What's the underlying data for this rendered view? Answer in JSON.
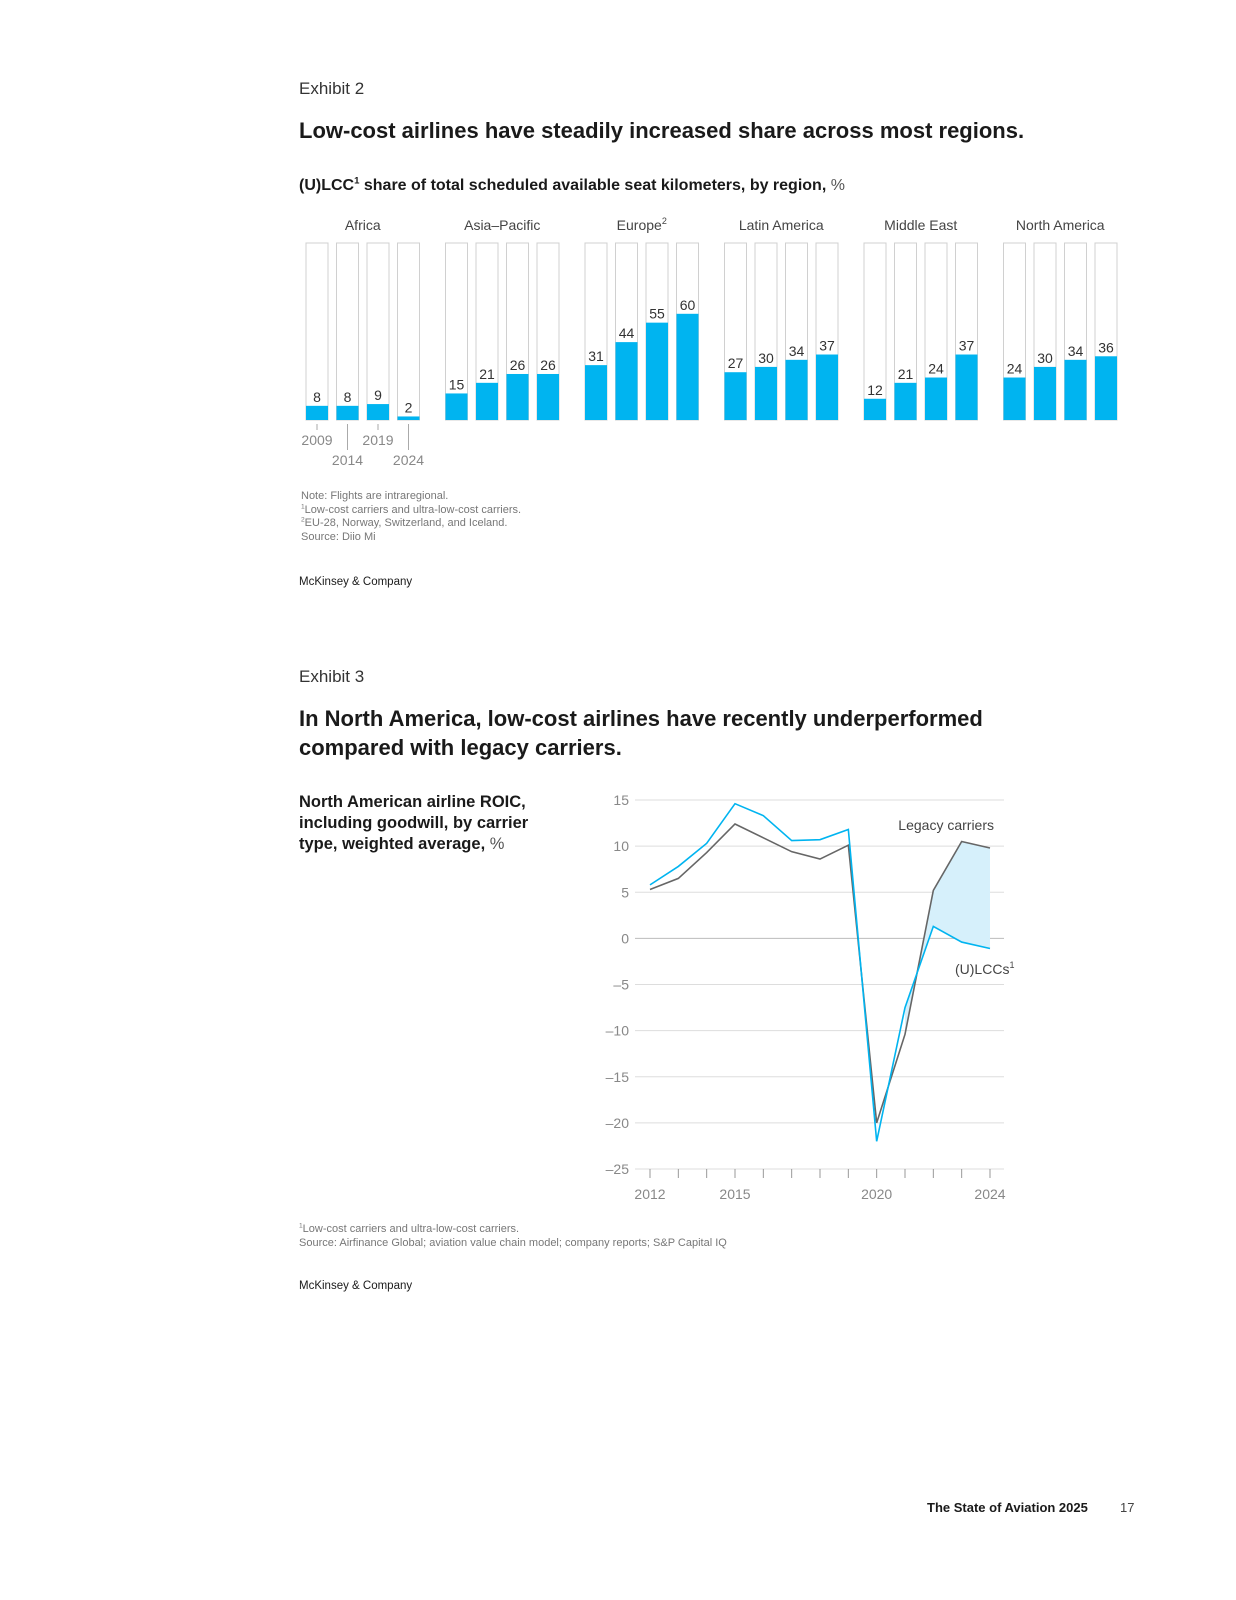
{
  "exhibit2": {
    "label": "Exhibit 2",
    "title": "Low-cost airlines have steadily increased share across most regions.",
    "subtitle_main": "(U)LCC",
    "subtitle_sup": "1",
    "subtitle_rest": " share of total scheduled available seat kilometers, by region, ",
    "subtitle_unit": "%",
    "year_labels": [
      "2009",
      "2014",
      "2019",
      "2024"
    ],
    "notes": {
      "note": "Note: Flights are intraregional.",
      "fn1": "Low-cost carriers and ultra-low-cost carriers.",
      "fn1_mark": "1",
      "fn2": "EU-28, Norway, Switzerland, and Iceland.",
      "fn2_mark": "2",
      "source": "Source: Diio Mi"
    },
    "brand": "McKinsey & Company"
  },
  "exhibit3": {
    "label": "Exhibit 3",
    "title_line1": "In North America, low-cost airlines have recently underperformed",
    "title_line2": "compared with legacy carriers.",
    "side_title": "North American airline ROIC, including goodwill, by carrier type, weighted average, ",
    "side_unit": "%",
    "notes": {
      "fn1": "Low-cost carriers and ultra-low-cost carriers.",
      "fn1_mark": "1",
      "source": "Source: Airfinance Global; aviation value chain model; company reports; S&P Capital IQ"
    },
    "brand": "McKinsey & Company"
  },
  "footer": {
    "title": "The State of Aviation 2025",
    "page": "17"
  },
  "colors": {
    "accent": "#00b4f0",
    "legacy": "#666666",
    "gap_fill": "#d6f0fb",
    "grid": "#dddddd",
    "bar_outline": "#d0d0d0"
  },
  "chart_data": [
    {
      "type": "bar",
      "categories": [
        "2009",
        "2014",
        "2019",
        "2024"
      ],
      "ylim": [
        0,
        100
      ],
      "unit": "%",
      "groups": [
        {
          "name": "Africa",
          "sup": "",
          "values": [
            8,
            8,
            9,
            2
          ]
        },
        {
          "name": "Asia–Pacific",
          "sup": "",
          "values": [
            15,
            21,
            26,
            26
          ]
        },
        {
          "name": "Europe",
          "sup": "2",
          "values": [
            31,
            44,
            55,
            60
          ]
        },
        {
          "name": "Latin America",
          "sup": "",
          "values": [
            27,
            30,
            34,
            37
          ]
        },
        {
          "name": "Middle East",
          "sup": "",
          "values": [
            12,
            21,
            24,
            37
          ]
        },
        {
          "name": "North America",
          "sup": "",
          "values": [
            24,
            30,
            34,
            36
          ]
        }
      ]
    },
    {
      "type": "line",
      "x": [
        2012,
        2013,
        2014,
        2015,
        2016,
        2017,
        2018,
        2019,
        2020,
        2021,
        2022,
        2023,
        2024
      ],
      "xticks": [
        2012,
        2015,
        2020,
        2024
      ],
      "ylim": [
        -25,
        15
      ],
      "yticks": [
        15,
        10,
        5,
        0,
        -5,
        -10,
        -15,
        -20,
        -25
      ],
      "ytick_labels": [
        "15",
        "10",
        "5",
        "0",
        "–5",
        "–10",
        "–15",
        "–20",
        "–25"
      ],
      "series": [
        {
          "name": "Legacy carriers",
          "sup": "",
          "key": "legacy",
          "values": [
            5.3,
            6.5,
            9.3,
            12.4,
            10.9,
            9.4,
            8.6,
            10.1,
            -20.0,
            -10.4,
            5.2,
            10.5,
            9.8
          ]
        },
        {
          "name": "(U)LCCs",
          "sup": "1",
          "key": "lcc",
          "values": [
            5.8,
            7.8,
            10.3,
            14.6,
            13.3,
            10.6,
            10.7,
            11.8,
            -22.0,
            -7.5,
            1.3,
            -0.4,
            -1.1
          ]
        }
      ],
      "grid": true
    }
  ]
}
